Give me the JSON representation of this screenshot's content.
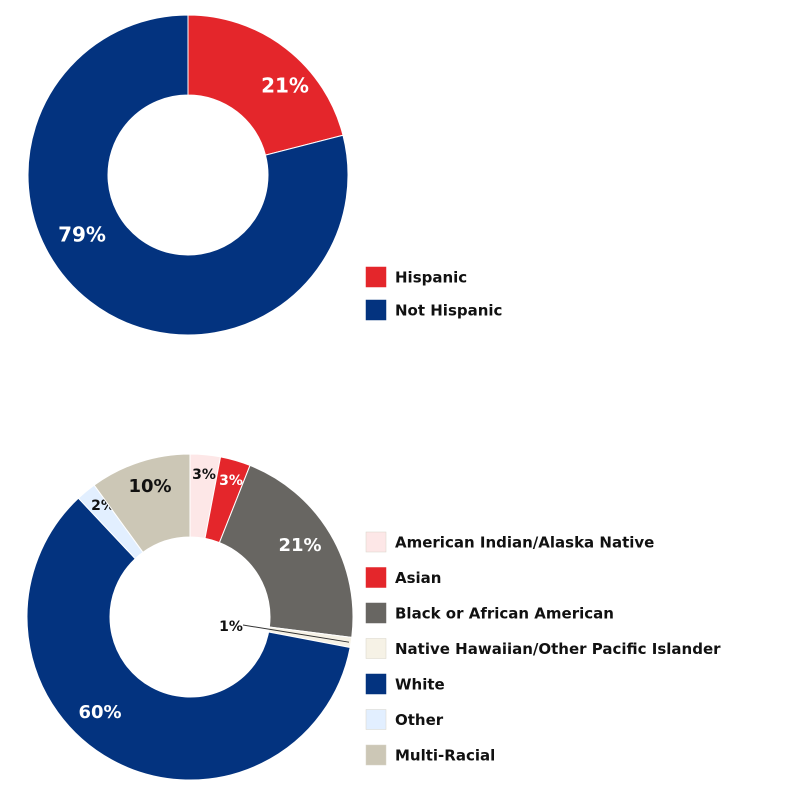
{
  "chart_data": [
    {
      "type": "pie",
      "donut": true,
      "legend_position": "right",
      "slices": [
        {
          "label": "Hispanic",
          "value": 21,
          "display": "21%",
          "color": "#e4262b"
        },
        {
          "label": "Not Hispanic",
          "value": 79,
          "display": "79%",
          "color": "#03337f"
        }
      ]
    },
    {
      "type": "pie",
      "donut": true,
      "legend_position": "right",
      "slices": [
        {
          "label": "American Indian/Alaska Native",
          "value": 3,
          "display": "3%",
          "color": "#fde7e7"
        },
        {
          "label": "Asian",
          "value": 3,
          "display": "3%",
          "color": "#e4262b"
        },
        {
          "label": "Black or African American",
          "value": 21,
          "display": "21%",
          "color": "#686662"
        },
        {
          "label": "Native Hawaiian/Other Pacific Islander",
          "value": 1,
          "display": "1%",
          "color": "#f6f2e6"
        },
        {
          "label": "White",
          "value": 60,
          "display": "60%",
          "color": "#03337f"
        },
        {
          "label": "Other",
          "value": 2,
          "display": "2%",
          "color": "#e2efff"
        },
        {
          "label": "Multi-Racial",
          "value": 10,
          "display": "10%",
          "color": "#ccc7b6"
        }
      ]
    }
  ]
}
